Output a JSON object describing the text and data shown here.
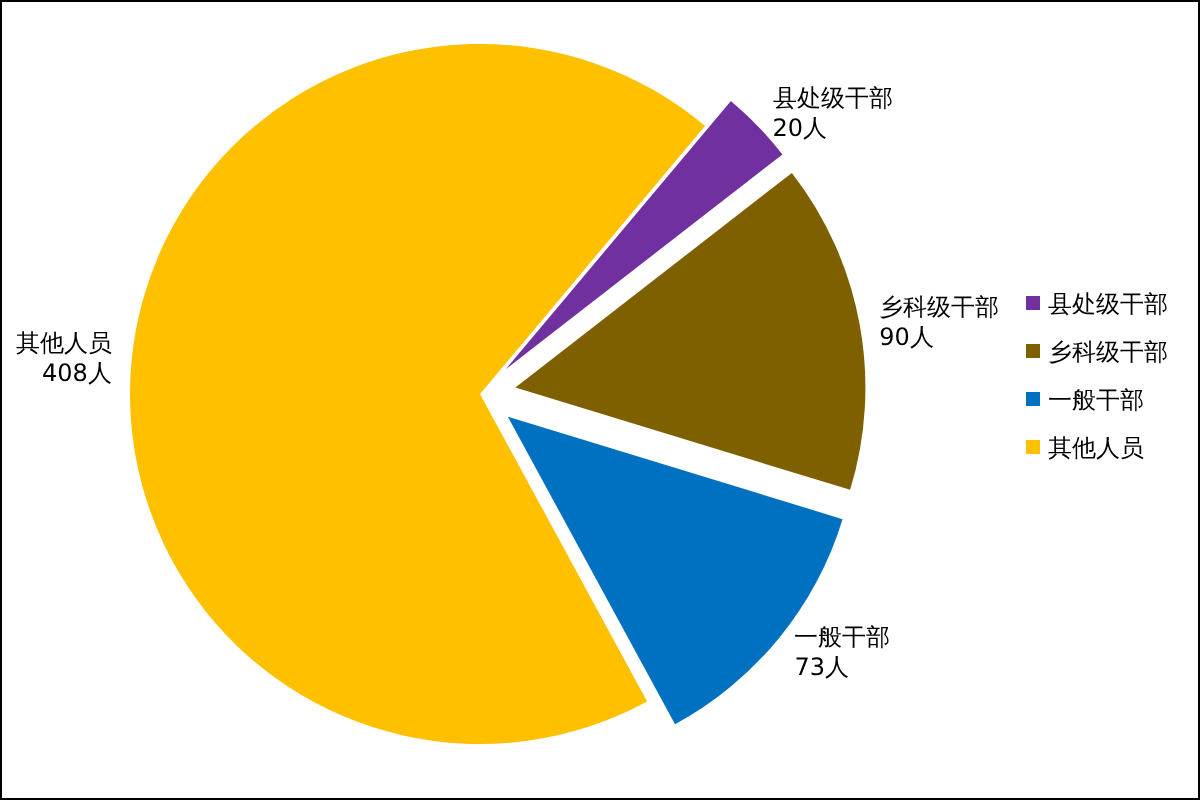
{
  "chart_data": {
    "type": "pie",
    "categories": [
      "县处级干部",
      "乡科级干部",
      "一般干部",
      "其他人员"
    ],
    "values": [
      20,
      90,
      73,
      408
    ],
    "colors": [
      "#7030a0",
      "#7f6000",
      "#0070c0",
      "#ffc000"
    ],
    "value_labels": [
      "20人",
      "90人",
      "73人",
      "408人"
    ],
    "legend": "right"
  }
}
